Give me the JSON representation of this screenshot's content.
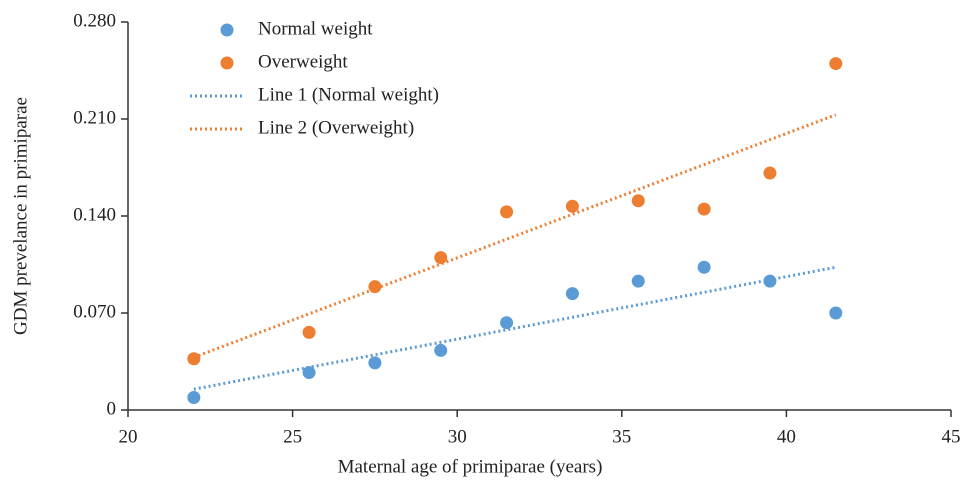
{
  "chart_data": {
    "type": "scatter",
    "x_label": "Maternal age of primiparae (years)",
    "y_label": "GDM prevelance in primiparae",
    "xlim": [
      20,
      45
    ],
    "xticks": [
      20,
      25,
      30,
      35,
      40,
      45
    ],
    "ylim": [
      0,
      0.28
    ],
    "yticks": [
      0,
      {
        "value": 0.07,
        "label": "0.070"
      },
      {
        "value": 0.14,
        "label": "0.140"
      },
      {
        "value": 0.21,
        "label": "0.210"
      },
      {
        "value": 0.28,
        "label": "0.280"
      }
    ],
    "legend": "top-left",
    "series": [
      {
        "name": "Normal weight",
        "color": "#5b9bd5",
        "mode": "markers",
        "x": [
          22,
          25.5,
          27.5,
          29.5,
          31.5,
          33.5,
          35.5,
          37.5,
          39.5,
          41.5
        ],
        "values": [
          0.009,
          0.027,
          0.034,
          0.043,
          0.063,
          0.084,
          0.093,
          0.103,
          0.093,
          0.07
        ]
      },
      {
        "name": "Overweight",
        "color": "#ed7d31",
        "mode": "markers",
        "x": [
          22,
          25.5,
          27.5,
          29.5,
          31.5,
          33.5,
          35.5,
          37.5,
          39.5,
          41.5
        ],
        "values": [
          0.037,
          0.056,
          0.089,
          0.11,
          0.143,
          0.147,
          0.151,
          0.145,
          0.171,
          0.25
        ]
      },
      {
        "name": "Line 1 (Normal weight)",
        "color": "#5b9bd5",
        "mode": "dotted-line",
        "x": [
          22,
          41.5
        ],
        "values": [
          0.015,
          0.103
        ]
      },
      {
        "name": "Line 2 (Overweight)",
        "color": "#ed7d31",
        "mode": "dotted-line",
        "x": [
          22,
          41.5
        ],
        "values": [
          0.038,
          0.213
        ]
      }
    ]
  }
}
